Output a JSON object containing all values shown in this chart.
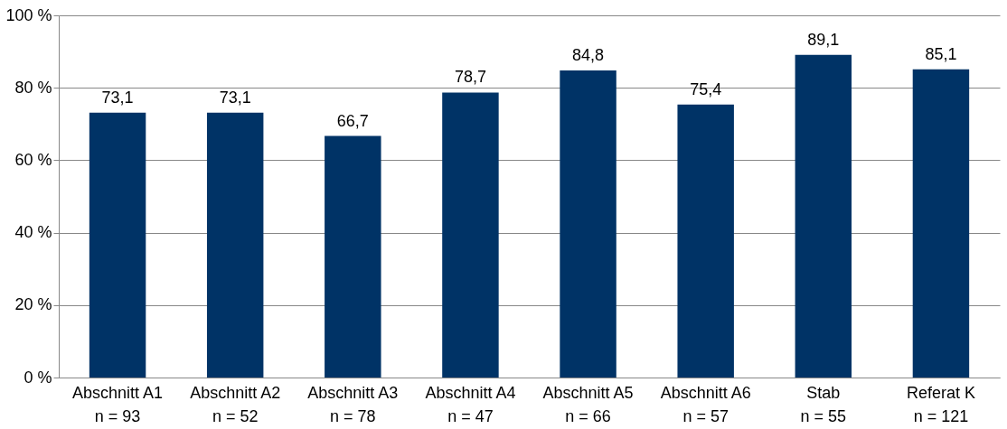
{
  "chart_data": {
    "type": "bar",
    "categories": [
      "Abschnitt A1\nn = 93",
      "Abschnitt A2\nn = 52",
      "Abschnitt A3\nn = 78",
      "Abschnitt A4\nn = 47",
      "Abschnitt A5\nn = 66",
      "Abschnitt A6\nn = 57",
      "Stab\nn = 55",
      "Referat K\nn = 121"
    ],
    "values": [
      73.1,
      73.1,
      66.7,
      78.7,
      84.8,
      75.4,
      89.1,
      85.1
    ],
    "value_labels": [
      "73,1",
      "73,1",
      "66,7",
      "78,7",
      "84,8",
      "75,4",
      "89,1",
      "85,1"
    ],
    "color": "#003366",
    "ylim": [
      0,
      100
    ],
    "yticks": [
      {
        "value": 0,
        "label": "0 %"
      },
      {
        "value": 20,
        "label": "20 %"
      },
      {
        "value": 40,
        "label": "40 %"
      },
      {
        "value": 60,
        "label": "60 %"
      },
      {
        "value": 80,
        "label": "80 %"
      },
      {
        "value": 100,
        "label": "100 %"
      }
    ],
    "grid": "y"
  }
}
